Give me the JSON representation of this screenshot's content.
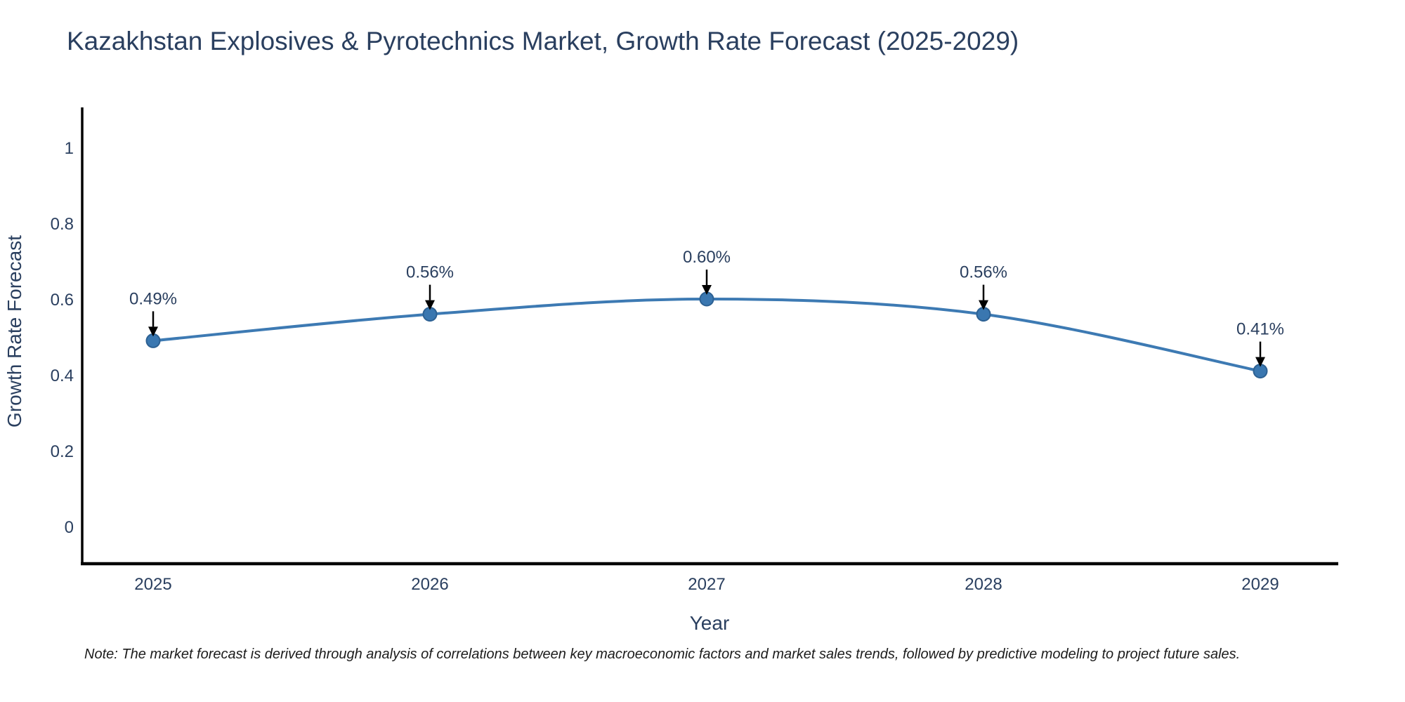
{
  "chart_data": {
    "type": "line",
    "title": "Kazakhstan Explosives & Pyrotechnics Market, Growth Rate Forecast (2025-2029)",
    "xlabel": "Year",
    "ylabel": "Growth Rate Forecast",
    "x": [
      "2025",
      "2026",
      "2027",
      "2028",
      "2029"
    ],
    "values": [
      0.49,
      0.56,
      0.6,
      0.56,
      0.41
    ],
    "point_labels": [
      "0.49%",
      "0.56%",
      "0.60%",
      "0.56%",
      "0.41%"
    ],
    "yticks": [
      0,
      0.2,
      0.4,
      0.6,
      0.8,
      1
    ],
    "ytick_labels": [
      "0",
      "0.2",
      "0.4",
      "0.6",
      "0.8",
      "1"
    ],
    "ylim": [
      0,
      1.1
    ],
    "grid": false,
    "legend": "none",
    "line_shape": "spline",
    "annotations_have_arrows": true,
    "colors": {
      "line": "#3d7ab3",
      "marker_fill": "#3a77b0",
      "marker_stroke": "#2d6193",
      "text": "#2a3f5f",
      "axis": "#000000",
      "arrow": "#000000"
    }
  },
  "note": "Note: The market forecast is derived through analysis of correlations between key macroeconomic factors and market sales trends, followed by predictive modeling to project future sales."
}
